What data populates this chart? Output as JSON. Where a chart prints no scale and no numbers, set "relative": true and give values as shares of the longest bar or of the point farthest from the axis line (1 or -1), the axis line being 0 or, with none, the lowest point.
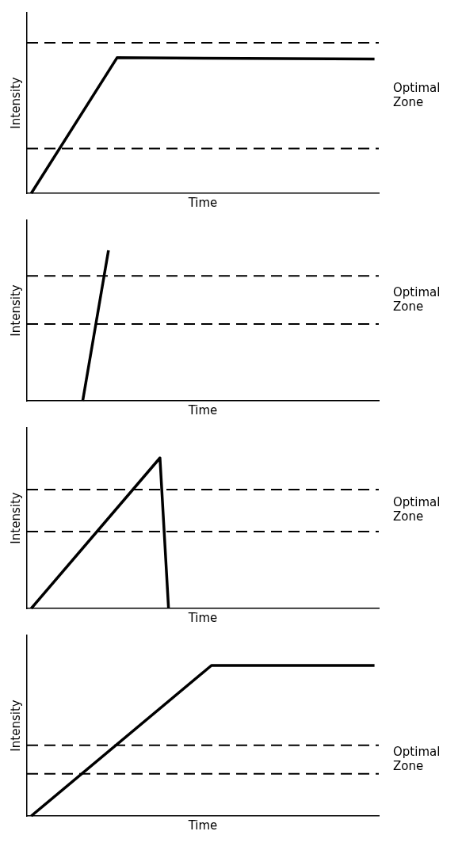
{
  "chart_data": [
    {
      "type": "line",
      "relative": true,
      "xlabel": "Time",
      "ylabel": "Intensity",
      "categories": [
        null,
        null,
        null,
        null,
        null,
        null,
        null,
        null,
        null,
        null,
        null,
        null,
        null,
        null,
        null,
        null,
        null,
        null,
        null,
        null,
        null,
        null,
        null,
        null,
        null,
        null,
        null,
        null,
        null,
        null,
        null,
        null,
        null,
        null,
        null,
        null,
        null,
        null,
        null,
        null,
        null
      ],
      "grid": false,
      "legend": false,
      "marker": "none",
      "series": [
        {
          "color": "#000000",
          "values": [
            0,
            null,
            null,
            null,
            null,
            null,
            null,
            null,
            null,
            null,
            1,
            null,
            null,
            null,
            null,
            null,
            null,
            null,
            null,
            null,
            null,
            null,
            null,
            null,
            null,
            null,
            null,
            null,
            null,
            null,
            null,
            null,
            null,
            null,
            null,
            null,
            null,
            null,
            null,
            null,
            0.99
          ]
        }
      ],
      "ref_lines": [
        {
          "axis": "y",
          "value": 1.11,
          "color": "#000000",
          "line_style": "dashed"
        },
        {
          "axis": "y",
          "value": 0.33,
          "color": "#000000",
          "line_style": "dashed"
        }
      ],
      "annotations": [
        "Optimal Zone"
      ]
    },
    {
      "type": "line",
      "relative": true,
      "xlabel": "Time",
      "ylabel": "Intensity",
      "categories": [
        null,
        null,
        null,
        null,
        null,
        null,
        null,
        null,
        null,
        null,
        null,
        null,
        null,
        null,
        null,
        null,
        null,
        null,
        null,
        null,
        null,
        null,
        null,
        null,
        null,
        null,
        null,
        null,
        null,
        null,
        null,
        null,
        null,
        null,
        null,
        null,
        null,
        null,
        null,
        null,
        null
      ],
      "grid": false,
      "legend": false,
      "marker": "none",
      "series": [
        {
          "color": "#000000",
          "values": [
            null,
            null,
            null,
            null,
            null,
            null,
            0,
            null,
            null,
            1,
            null,
            null,
            null,
            null,
            null,
            null,
            null,
            null,
            null,
            null,
            null,
            null,
            null,
            null,
            null,
            null,
            null,
            null,
            null,
            null,
            null,
            null,
            null,
            null,
            null,
            null,
            null,
            null,
            null,
            null,
            null
          ]
        }
      ],
      "ref_lines": [
        {
          "axis": "y",
          "value": 0.83,
          "color": "#000000",
          "line_style": "dashed"
        },
        {
          "axis": "y",
          "value": 0.51,
          "color": "#000000",
          "line_style": "dashed"
        }
      ],
      "annotations": [
        "Optimal Zone"
      ]
    },
    {
      "type": "line",
      "relative": true,
      "xlabel": "Time",
      "ylabel": "Intensity",
      "categories": [
        null,
        null,
        null,
        null,
        null,
        null,
        null,
        null,
        null,
        null,
        null,
        null,
        null,
        null,
        null,
        null,
        null,
        null,
        null,
        null,
        null,
        null,
        null,
        null,
        null,
        null,
        null,
        null,
        null,
        null,
        null,
        null,
        null,
        null,
        null,
        null,
        null,
        null,
        null,
        null,
        null
      ],
      "grid": false,
      "legend": false,
      "marker": "none",
      "series": [
        {
          "color": "#000000",
          "values": [
            0,
            null,
            null,
            null,
            null,
            null,
            null,
            null,
            null,
            null,
            null,
            null,
            null,
            null,
            null,
            1,
            0,
            null,
            null,
            null,
            null,
            null,
            null,
            null,
            null,
            null,
            null,
            null,
            null,
            null,
            null,
            null,
            null,
            null,
            null,
            null,
            null,
            null,
            null,
            null,
            null
          ]
        }
      ],
      "ref_lines": [
        {
          "axis": "y",
          "value": 0.79,
          "color": "#000000",
          "line_style": "dashed"
        },
        {
          "axis": "y",
          "value": 0.51,
          "color": "#000000",
          "line_style": "dashed"
        }
      ],
      "annotations": [
        "Optimal Zone"
      ]
    },
    {
      "type": "line",
      "relative": true,
      "xlabel": "Time",
      "ylabel": "Intensity",
      "categories": [
        null,
        null,
        null,
        null,
        null,
        null,
        null,
        null,
        null,
        null,
        null,
        null,
        null,
        null,
        null,
        null,
        null,
        null,
        null,
        null,
        null,
        null,
        null,
        null,
        null,
        null,
        null,
        null,
        null,
        null,
        null,
        null,
        null,
        null,
        null,
        null,
        null,
        null,
        null,
        null,
        null
      ],
      "grid": false,
      "legend": false,
      "marker": "none",
      "series": [
        {
          "color": "#000000",
          "values": [
            0,
            null,
            null,
            null,
            null,
            null,
            null,
            null,
            null,
            null,
            null,
            null,
            null,
            null,
            null,
            null,
            null,
            null,
            null,
            null,
            null,
            1,
            null,
            null,
            null,
            null,
            null,
            null,
            null,
            null,
            null,
            null,
            null,
            null,
            null,
            null,
            null,
            null,
            null,
            null,
            1
          ]
        }
      ],
      "ref_lines": [
        {
          "axis": "y",
          "value": 0.47,
          "color": "#000000",
          "line_style": "dashed"
        },
        {
          "axis": "y",
          "value": 0.28,
          "color": "#000000",
          "line_style": "dashed"
        }
      ],
      "annotations": [
        "Optimal Zone"
      ]
    }
  ]
}
